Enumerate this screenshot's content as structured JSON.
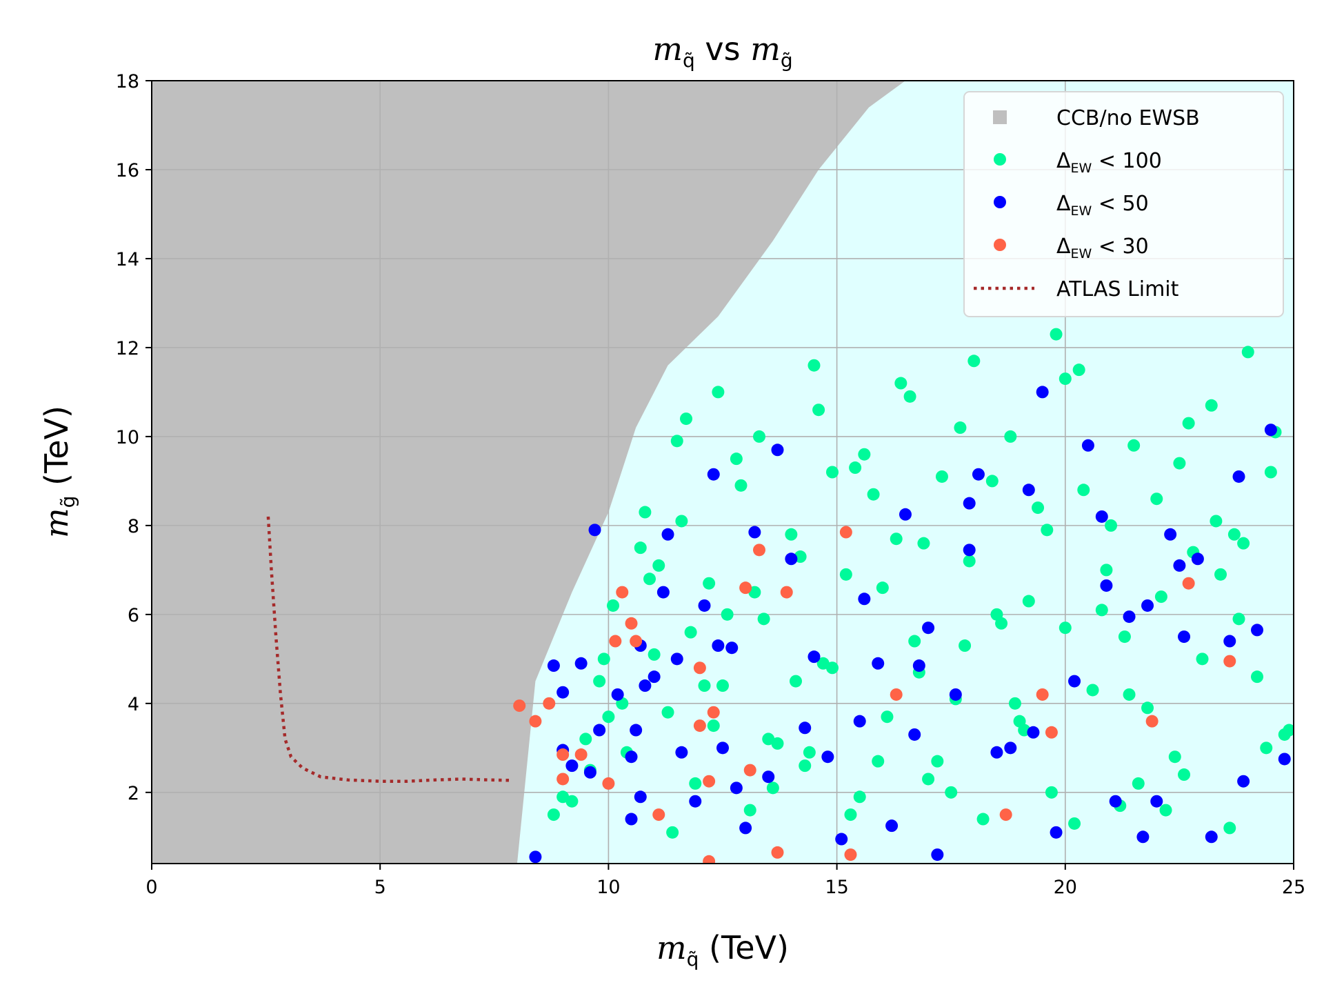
{
  "chart_data": {
    "type": "scatter",
    "title": "m_q̃ vs m_g̃",
    "title_parts": {
      "left": "m",
      "left_sub": "q̃",
      "mid": " vs ",
      "right": "m",
      "right_sub": "g̃"
    },
    "xlabel": "m_q̃ (TeV)",
    "xlabel_parts": {
      "sym": "m",
      "sub": "q̃",
      "unit": " (TeV)"
    },
    "ylabel": "m_g̃ (TeV)",
    "ylabel_parts": {
      "sym": "m",
      "sub": "g̃",
      "unit": " (TeV)"
    },
    "xlim": [
      0,
      25
    ],
    "ylim": [
      0.4,
      18
    ],
    "xticks": [
      "0",
      "5",
      "10",
      "15",
      "20",
      "25"
    ],
    "yticks": [
      "2",
      "4",
      "6",
      "8",
      "10",
      "12",
      "14",
      "16",
      "18"
    ],
    "grid": true,
    "legend_position": "top-right",
    "legend": [
      {
        "label": "CCB/no EWSB",
        "marker": "square",
        "color": "#bfbfbf"
      },
      {
        "label": "Δ_EW < 100",
        "base": "Δ",
        "sub": "EW",
        "rest": " < 100",
        "marker": "circle",
        "color": "#00fa9a"
      },
      {
        "label": "Δ_EW < 50",
        "base": "Δ",
        "sub": "EW",
        "rest": " < 50",
        "marker": "circle",
        "color": "#0000ff"
      },
      {
        "label": "Δ_EW < 30",
        "base": "Δ",
        "sub": "EW",
        "rest": " < 30",
        "marker": "circle",
        "color": "#ff6347"
      },
      {
        "label": "ATLAS Limit",
        "marker": "dotted-line",
        "color": "#a52a2a"
      }
    ],
    "allowed_region_color": "#e0ffff",
    "ccb_boundary": {
      "note": "Left-upper region is CCB/no EWSB; allowed region starts at this gluino-mass-dependent squark mass",
      "x": [
        8.0,
        8.4,
        9.2,
        10.0,
        10.6,
        11.3,
        12.4,
        13.6,
        14.6,
        15.7,
        16.5,
        25
      ],
      "y": [
        0.4,
        4.5,
        6.5,
        8.3,
        10.2,
        11.6,
        12.7,
        14.4,
        16.0,
        17.4,
        18.0,
        18.0
      ]
    },
    "atlas_limit": {
      "x": [
        2.55,
        2.62,
        2.72,
        2.82,
        2.92,
        3.05,
        3.3,
        3.7,
        4.3,
        5.0,
        5.6,
        6.2,
        6.8,
        7.4,
        7.9
      ],
      "y": [
        8.2,
        7.0,
        5.5,
        4.2,
        3.2,
        2.8,
        2.55,
        2.35,
        2.28,
        2.25,
        2.25,
        2.28,
        2.3,
        2.28,
        2.27
      ]
    },
    "series": [
      {
        "name": "Δ_EW < 30",
        "color": "#ff6347",
        "x": [
          8.05,
          8.4,
          8.7,
          9.0,
          9.0,
          9.4,
          10.0,
          10.15,
          10.3,
          10.5,
          10.6,
          11.1,
          12.0,
          12.0,
          12.2,
          12.3,
          12.2,
          13.0,
          13.1,
          13.3,
          13.7,
          13.9,
          15.2,
          15.3,
          16.3,
          18.7,
          19.5,
          19.7,
          21.9,
          22.7,
          23.6
        ],
        "y": [
          3.95,
          3.6,
          4.0,
          2.85,
          2.3,
          2.85,
          2.2,
          5.4,
          6.5,
          5.8,
          5.4,
          1.5,
          4.8,
          3.5,
          0.45,
          3.8,
          2.25,
          6.6,
          2.5,
          7.45,
          0.65,
          6.5,
          7.85,
          0.6,
          4.2,
          1.5,
          4.2,
          3.35,
          3.6,
          6.7,
          4.95
        ]
      },
      {
        "name": "Δ_EW < 50",
        "color": "#0000ff",
        "x": [
          8.4,
          8.8,
          9.0,
          9.0,
          9.2,
          9.4,
          9.6,
          9.7,
          9.8,
          10.2,
          10.5,
          10.5,
          10.6,
          10.7,
          10.8,
          11.0,
          11.2,
          11.3,
          11.5,
          11.6,
          11.9,
          12.1,
          12.3,
          12.4,
          12.5,
          12.8,
          13.0,
          13.2,
          13.5,
          13.7,
          14.0,
          14.3,
          14.5,
          14.8,
          15.1,
          15.5,
          15.9,
          16.2,
          16.5,
          16.7,
          17.0,
          17.2,
          17.6,
          17.9,
          18.1,
          18.5,
          18.8,
          19.2,
          19.5,
          19.8,
          20.2,
          20.5,
          20.8,
          21.1,
          21.4,
          21.7,
          22.0,
          22.3,
          22.6,
          22.9,
          23.2,
          23.6,
          23.9,
          24.2,
          24.5,
          24.8,
          12.7,
          15.6,
          19.3,
          20.9,
          23.8,
          16.8,
          21.8,
          22.5,
          17.9,
          10.7
        ],
        "y": [
          0.55,
          4.85,
          4.25,
          2.95,
          2.6,
          4.9,
          2.45,
          7.9,
          3.4,
          4.2,
          2.8,
          1.4,
          3.4,
          5.3,
          4.4,
          4.6,
          6.5,
          7.8,
          5.0,
          2.9,
          1.8,
          6.2,
          9.15,
          5.3,
          3.0,
          2.1,
          1.2,
          7.85,
          2.35,
          9.7,
          7.25,
          3.45,
          5.05,
          2.8,
          0.95,
          3.6,
          4.9,
          1.25,
          8.25,
          3.3,
          5.7,
          0.6,
          4.2,
          7.45,
          9.15,
          2.9,
          3.0,
          8.8,
          11.0,
          1.1,
          4.5,
          9.8,
          8.2,
          1.8,
          5.95,
          1.0,
          1.8,
          7.8,
          5.5,
          7.25,
          1.0,
          5.4,
          2.25,
          5.65,
          10.15,
          2.75,
          5.25,
          6.35,
          3.35,
          6.65,
          9.1,
          4.85,
          6.2,
          7.1,
          8.5,
          1.9
        ]
      },
      {
        "name": "Δ_EW < 100",
        "color": "#00fa9a",
        "x": [
          9.2,
          9.5,
          9.8,
          10.1,
          10.4,
          10.7,
          11.0,
          11.3,
          11.6,
          11.9,
          12.2,
          12.5,
          12.8,
          13.1,
          13.4,
          13.7,
          14.0,
          14.3,
          14.6,
          14.9,
          15.2,
          15.5,
          15.8,
          16.1,
          16.4,
          16.7,
          17.0,
          17.3,
          17.6,
          17.9,
          18.2,
          18.5,
          18.8,
          19.1,
          19.4,
          19.7,
          20.0,
          20.3,
          20.6,
          20.9,
          21.2,
          21.5,
          21.8,
          22.1,
          22.4,
          22.7,
          23.0,
          23.3,
          23.6,
          23.9,
          24.2,
          24.5,
          24.8,
          9.6,
          10.3,
          10.9,
          11.4,
          11.8,
          12.3,
          12.9,
          13.6,
          14.2,
          14.7,
          15.3,
          16.0,
          16.6,
          17.2,
          17.8,
          18.4,
          19.0,
          19.6,
          20.2,
          20.8,
          21.4,
          22.0,
          22.6,
          23.2,
          23.8,
          24.4,
          9.0,
          10.0,
          11.1,
          12.1,
          13.3,
          14.4,
          15.6,
          16.8,
          18.0,
          19.2,
          20.4,
          21.6,
          22.8,
          24.0,
          11.7,
          12.6,
          13.5,
          14.5,
          15.4,
          16.3,
          17.5,
          18.6,
          19.8,
          21.0,
          22.2,
          23.4,
          24.6,
          8.8,
          9.9,
          10.8,
          11.5,
          12.4,
          13.2,
          14.1,
          14.9,
          15.9,
          16.9,
          17.7,
          18.9,
          20.0,
          21.3,
          22.5,
          23.7,
          24.9
        ],
        "y": [
          1.8,
          3.2,
          4.5,
          6.2,
          2.9,
          7.5,
          5.1,
          3.8,
          8.1,
          2.2,
          6.7,
          4.4,
          9.5,
          1.6,
          5.9,
          3.1,
          7.8,
          2.6,
          10.6,
          4.8,
          6.9,
          1.9,
          8.7,
          3.7,
          11.2,
          5.4,
          2.3,
          9.1,
          4.1,
          7.2,
          1.4,
          6.0,
          10.0,
          3.4,
          8.4,
          2.0,
          5.7,
          11.5,
          4.3,
          7.0,
          1.7,
          9.8,
          3.9,
          6.4,
          2.8,
          10.3,
          5.0,
          8.1,
          1.2,
          7.6,
          4.6,
          9.2,
          3.3,
          2.5,
          4.0,
          6.8,
          1.1,
          5.6,
          3.5,
          8.9,
          2.1,
          7.3,
          4.9,
          1.5,
          6.6,
          10.9,
          2.7,
          5.3,
          9.0,
          3.6,
          7.9,
          1.3,
          6.1,
          4.2,
          8.6,
          2.4,
          10.7,
          5.9,
          3.0,
          1.9,
          3.7,
          7.1,
          4.4,
          10.0,
          2.9,
          9.6,
          4.7,
          11.7,
          6.3,
          8.8,
          2.2,
          7.4,
          11.9,
          10.4,
          6.0,
          3.2,
          11.6,
          9.3,
          7.7,
          2.0,
          5.8,
          12.3,
          8.0,
          1.6,
          6.9,
          10.1,
          1.5,
          5.0,
          8.3,
          9.9,
          11.0,
          6.5,
          4.5,
          9.2,
          2.7,
          7.6,
          10.2,
          4.0,
          11.3,
          5.5,
          9.4,
          7.8,
          3.4
        ]
      }
    ]
  }
}
